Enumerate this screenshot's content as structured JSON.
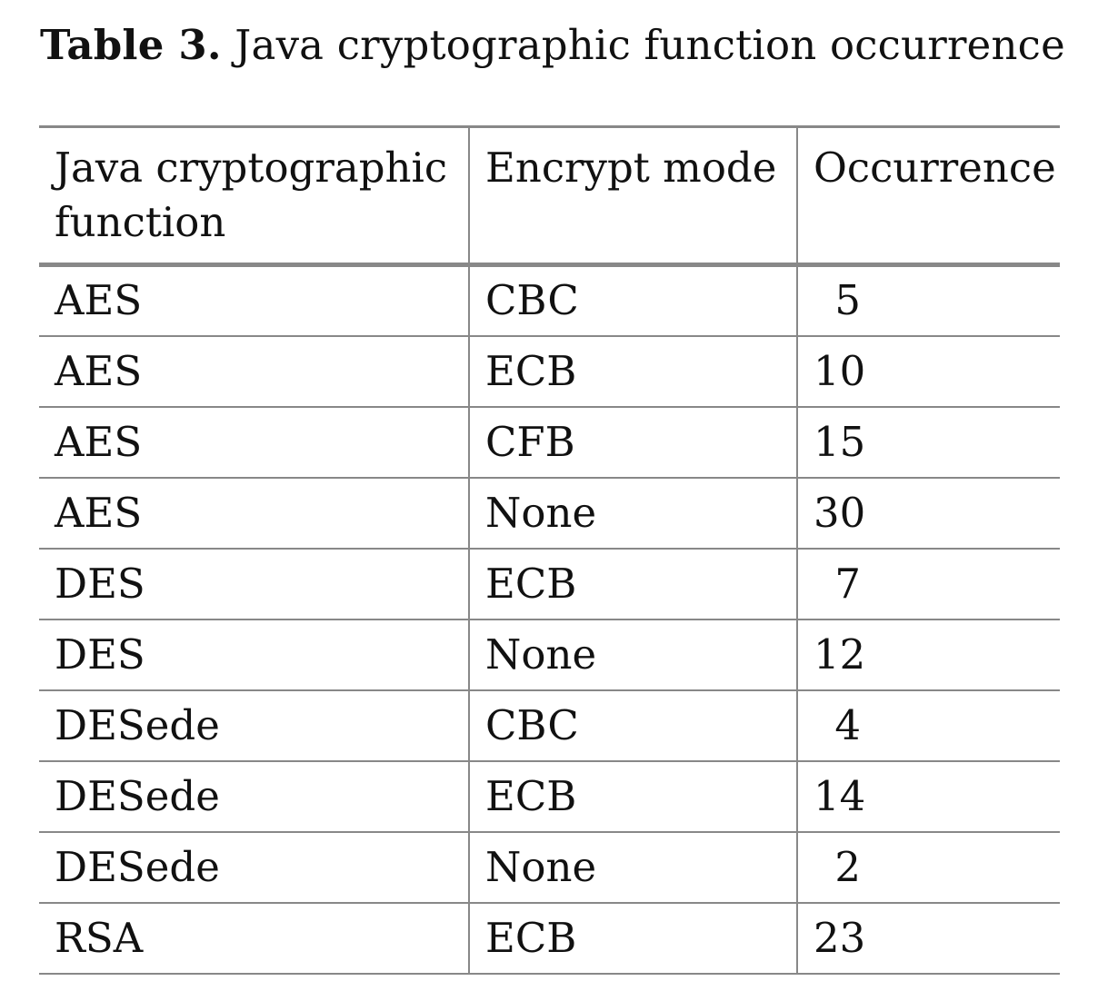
{
  "caption": {
    "label": "Table 3.",
    "text": "Java cryptographic function occurrence"
  },
  "table": {
    "headers": [
      "Java cryptographic function",
      "Encrypt mode",
      "Occurrence"
    ],
    "rows": [
      [
        "AES",
        "CBC",
        "5"
      ],
      [
        "AES",
        "ECB",
        "10"
      ],
      [
        "AES",
        "CFB",
        "15"
      ],
      [
        "AES",
        "None",
        "30"
      ],
      [
        "DES",
        "ECB",
        "7"
      ],
      [
        "DES",
        "None",
        "12"
      ],
      [
        "DESede",
        "CBC",
        "4"
      ],
      [
        "DESede",
        "ECB",
        "14"
      ],
      [
        "DESede",
        "None",
        "2"
      ],
      [
        "RSA",
        "ECB",
        "23"
      ]
    ]
  }
}
